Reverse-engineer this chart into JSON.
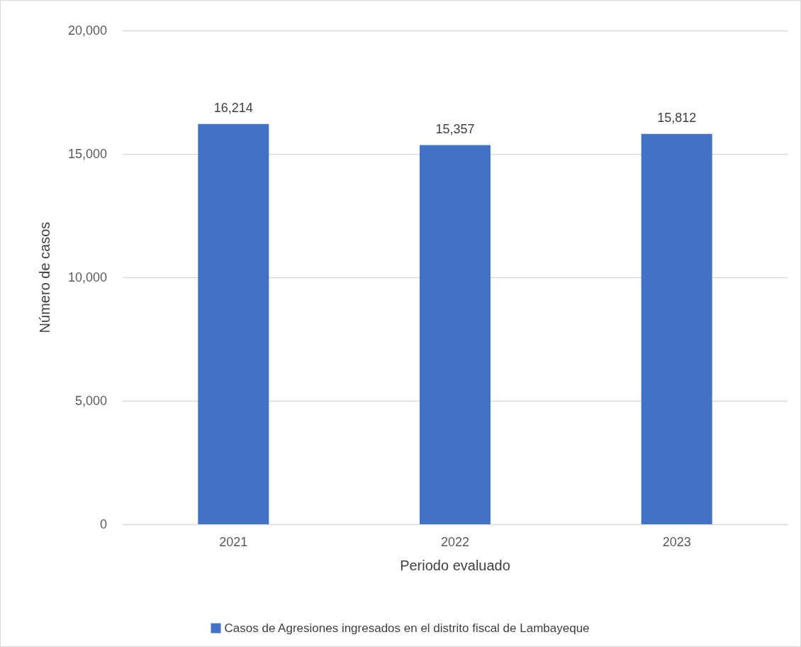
{
  "chart_data": {
    "type": "bar",
    "xlabel": "Periodo evaluado",
    "ylabel": "Número de casos",
    "categories": [
      "2021",
      "2022",
      "2023"
    ],
    "series": [
      {
        "name": "Casos de Agresiones ingresados en el distrito fiscal de Lambayeque",
        "color": "#4472c4",
        "values": [
          16214,
          15357,
          15812
        ],
        "value_labels": [
          "16,214",
          "15,357",
          "15,812"
        ]
      }
    ],
    "ylim": [
      0,
      20000
    ],
    "yticks": [
      {
        "value": 0,
        "label": "0"
      },
      {
        "value": 5000,
        "label": "5,000"
      },
      {
        "value": 10000,
        "label": "10,000"
      },
      {
        "value": 15000,
        "label": "15,000"
      },
      {
        "value": 20000,
        "label": "20,000"
      }
    ],
    "grid": "y",
    "legend": "bottom"
  }
}
